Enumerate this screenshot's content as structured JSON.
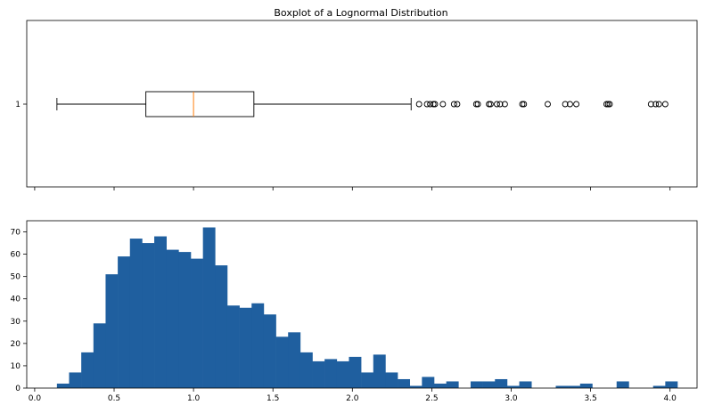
{
  "chart_data": [
    {
      "type": "boxplot",
      "title": "Boxplot of a Lognormal Distribution",
      "orientation": "horizontal",
      "category_label": "1",
      "xlim": [
        -0.05,
        4.17
      ],
      "whisker_low": 0.14,
      "q1": 0.7,
      "median": 1.0,
      "q3": 1.38,
      "whisker_high": 2.37,
      "outliers": [
        2.42,
        2.47,
        2.49,
        2.51,
        2.52,
        2.57,
        2.64,
        2.66,
        2.78,
        2.79,
        2.86,
        2.87,
        2.91,
        2.93,
        2.96,
        3.07,
        3.08,
        3.23,
        3.34,
        3.37,
        3.41,
        3.6,
        3.61,
        3.62,
        3.88,
        3.91,
        3.93,
        3.97
      ],
      "colors": {
        "box": "#000000",
        "median": "#ff7f0e"
      }
    },
    {
      "type": "histogram",
      "title": "",
      "xlim": [
        -0.05,
        4.17
      ],
      "ylim": [
        0,
        75
      ],
      "xticks": [
        0.0,
        0.5,
        1.0,
        1.5,
        2.0,
        2.5,
        3.0,
        3.5,
        4.0
      ],
      "xtick_labels": [
        "0.0",
        "0.5",
        "1.0",
        "1.5",
        "2.0",
        "2.5",
        "3.0",
        "3.5",
        "4.0"
      ],
      "yticks": [
        0,
        10,
        20,
        30,
        40,
        50,
        60,
        70
      ],
      "ytick_labels": [
        "0",
        "10",
        "20",
        "30",
        "40",
        "50",
        "60",
        "70"
      ],
      "bin_start": 0.14,
      "bin_width": 0.0766,
      "counts": [
        2,
        7,
        16,
        29,
        51,
        59,
        67,
        65,
        68,
        62,
        61,
        58,
        72,
        55,
        37,
        36,
        38,
        33,
        23,
        25,
        16,
        12,
        13,
        12,
        14,
        7,
        15,
        7,
        4,
        1,
        5,
        2,
        3,
        0,
        3,
        3,
        4,
        1,
        3,
        0,
        0,
        1,
        1,
        2,
        0,
        0,
        3,
        0,
        0,
        1,
        3
      ],
      "colors": {
        "bar": "#1f5f9f"
      }
    }
  ]
}
